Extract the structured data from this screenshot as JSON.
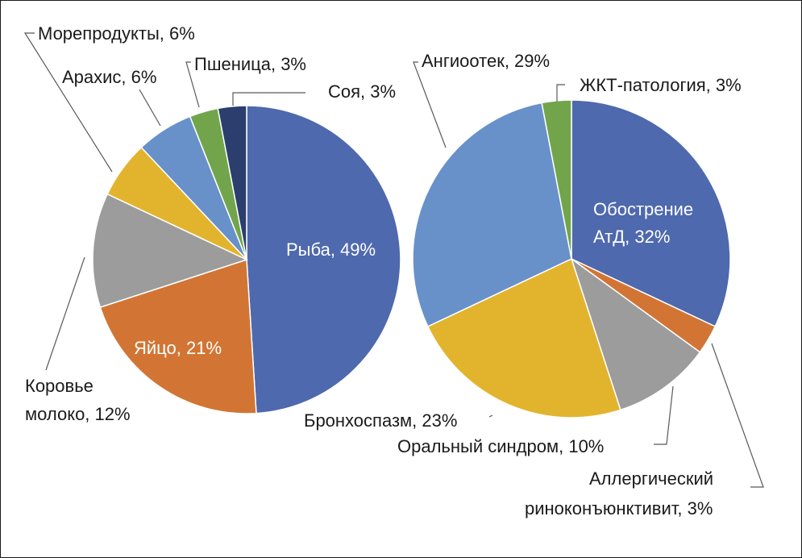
{
  "chart_data": [
    {
      "type": "pie",
      "slices": [
        {
          "label": "Рыба, 49%",
          "value": 49,
          "color": "#4e69ad"
        },
        {
          "label": "Яйцо, 21%",
          "value": 21,
          "color": "#d27534"
        },
        {
          "label": "Коровье молоко, 12%",
          "value": 12,
          "color": "#9c9c9c"
        },
        {
          "label": "Морепродукты, 6%",
          "value": 6,
          "color": "#e2b42e"
        },
        {
          "label": "Арахис, 6%",
          "value": 6,
          "color": "#6891c9"
        },
        {
          "label": "Пшеница, 3%",
          "value": 3,
          "color": "#72a54b"
        },
        {
          "label": "Соя, 3%",
          "value": 3,
          "color": "#2c3e6d"
        }
      ]
    },
    {
      "type": "pie",
      "slices": [
        {
          "label": "Обострение АтД, 32%",
          "value": 32,
          "color": "#4e69ad"
        },
        {
          "label": "Аллергический риноконъюнктивит, 3%",
          "value": 3,
          "color": "#d27534"
        },
        {
          "label": "Оральный синдром, 10%",
          "value": 10,
          "color": "#9c9c9c"
        },
        {
          "label": "Бронхоспазм, 23%",
          "value": 23,
          "color": "#e2b42e"
        },
        {
          "label": "Ангиоотек, 29%",
          "value": 29,
          "color": "#6891c9"
        },
        {
          "label": "ЖКТ-патология, 3%",
          "value": 3,
          "color": "#72a54b"
        }
      ]
    }
  ],
  "labels": {
    "p1": {
      "fish": "Рыба, 49%",
      "egg": "Яйцо, 21%",
      "milk_1": "Коровье",
      "milk_2": "молоко, 12%",
      "seafood": "Морепродукты, 6%",
      "peanut": "Арахис, 6%",
      "wheat": "Пшеница, 3%",
      "soy": "Соя, 3%"
    },
    "p2": {
      "atd_1": "Обострение",
      "atd_2": "АтД, 32%",
      "rhino_1": "Аллергический",
      "rhino_2": "риноконъюнктивит, 3%",
      "oral": "Оральный синдром, 10%",
      "broncho": "Бронхоспазм, 23%",
      "angio": "Ангиоотек, 29%",
      "gi": "ЖКТ-патология, 3%"
    }
  }
}
